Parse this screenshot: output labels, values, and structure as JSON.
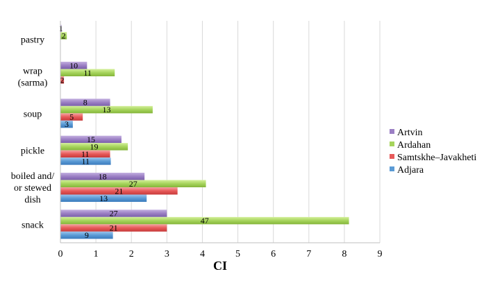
{
  "chart_data": {
    "type": "bar",
    "orientation": "horizontal",
    "categories": [
      [
        "pastry"
      ],
      [
        "wrap",
        "(sarma)"
      ],
      [
        "soup"
      ],
      [
        "pickle"
      ],
      [
        "boiled and/",
        "or stewed",
        "dish"
      ],
      [
        "snack"
      ]
    ],
    "xlabel": "CI",
    "xlim": [
      0,
      9
    ],
    "xticks": [
      0,
      1,
      2,
      3,
      4,
      5,
      6,
      7,
      8,
      9
    ],
    "grid": "vertical",
    "legend_position": "right",
    "series": [
      {
        "name": "Artvin",
        "color": "#9b7fc4",
        "values": [
          0.03,
          0.75,
          1.4,
          1.72,
          2.37,
          3.0
        ],
        "labels": [
          "1",
          "10",
          "8",
          "15",
          "18",
          "27"
        ]
      },
      {
        "name": "Ardahan",
        "color": "#a6d45c",
        "values": [
          0.18,
          1.53,
          2.6,
          1.9,
          4.1,
          8.13
        ],
        "labels": [
          "2",
          "11",
          "13",
          "19",
          "27",
          "47"
        ]
      },
      {
        "name": "Samtskhe–Javakheti",
        "color": "#e75a5a",
        "values": [
          null,
          0.1,
          0.63,
          1.4,
          3.3,
          3.0
        ],
        "labels": [
          null,
          "2",
          "5",
          "11",
          "21",
          "21"
        ]
      },
      {
        "name": "Adjara",
        "color": "#5b9bd5",
        "values": [
          null,
          null,
          0.35,
          1.42,
          2.43,
          1.48
        ],
        "labels": [
          null,
          null,
          "3",
          "11",
          "13",
          "9"
        ]
      }
    ]
  }
}
